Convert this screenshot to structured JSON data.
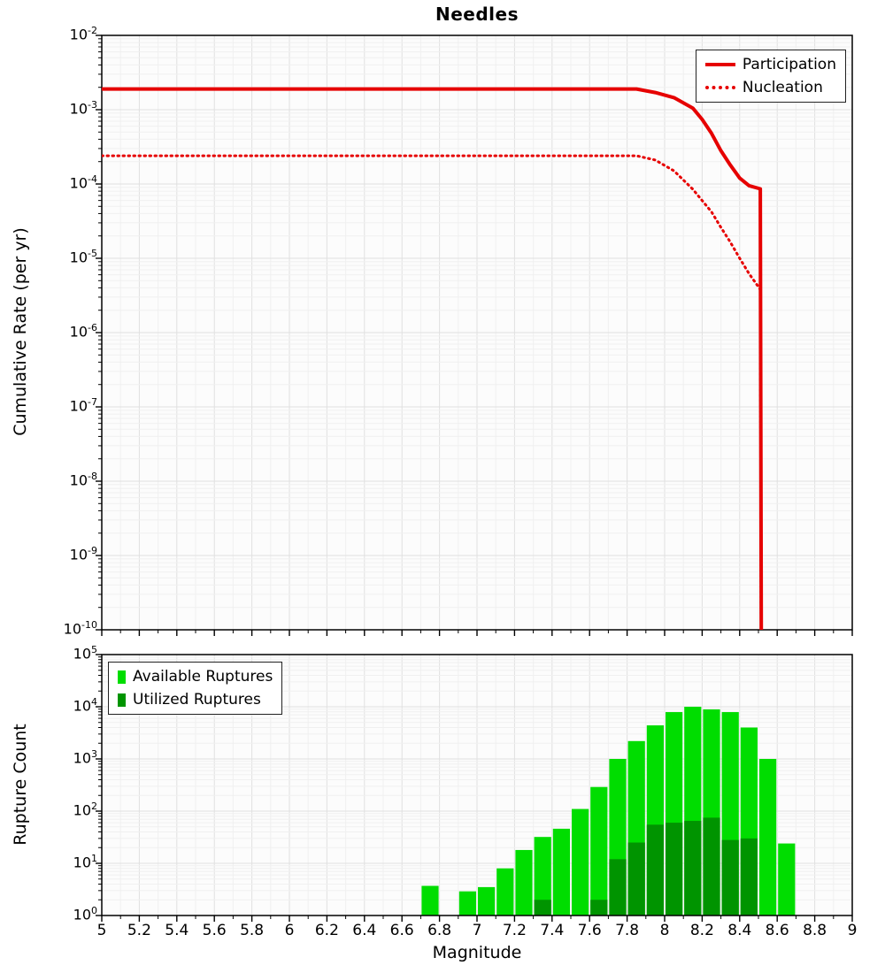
{
  "title": "Needles",
  "chart_data": [
    {
      "type": "line",
      "title": "Needles",
      "ylabel": "Cumulative Rate (per yr)",
      "xlabel": "",
      "x_range": [
        5,
        9
      ],
      "y_scale": "log",
      "y_exp_min": -10,
      "y_exp_max": -2,
      "grid": true,
      "legend_position": "top-right",
      "x_major_ticks": [
        5,
        5.2,
        5.4,
        5.6,
        5.8,
        6,
        6.2,
        6.4,
        6.6,
        6.8,
        7,
        7.2,
        7.4,
        7.6,
        7.8,
        8,
        8.2,
        8.4,
        8.6,
        8.8,
        9
      ],
      "points_format": "[magnitude, cumulative_rate_per_yr]",
      "series": [
        {
          "name": "Participation",
          "color": "#e60000",
          "line": "solid",
          "points": [
            [
              5,
              0.0019
            ],
            [
              7.85,
              0.0019
            ],
            [
              7.95,
              0.0017
            ],
            [
              8.05,
              0.00145
            ],
            [
              8.15,
              0.00105
            ],
            [
              8.2,
              0.00074
            ],
            [
              8.25,
              0.00048
            ],
            [
              8.3,
              0.00028
            ],
            [
              8.35,
              0.00018
            ],
            [
              8.4,
              0.00012
            ],
            [
              8.45,
              9.5e-05
            ],
            [
              8.51,
              8.6e-05
            ],
            [
              8.515,
              1e-10
            ]
          ]
        },
        {
          "name": "Nucleation",
          "color": "#e60000",
          "line": "dotted",
          "points": [
            [
              5,
              0.00024
            ],
            [
              7.85,
              0.00024
            ],
            [
              7.95,
              0.00021
            ],
            [
              8.05,
              0.00015
            ],
            [
              8.15,
              8.5e-05
            ],
            [
              8.25,
              4.2e-05
            ],
            [
              8.3,
              2.6e-05
            ],
            [
              8.35,
              1.65e-05
            ],
            [
              8.4,
              1e-05
            ],
            [
              8.45,
              6.2e-06
            ],
            [
              8.51,
              3.8e-06
            ],
            [
              8.515,
              1e-11
            ]
          ]
        }
      ]
    },
    {
      "type": "bar",
      "ylabel": "Rupture Count",
      "xlabel": "Magnitude",
      "x_range": [
        5,
        9
      ],
      "y_scale": "log",
      "y_exp_min": 0,
      "y_exp_max": 5,
      "bin_width": 0.1,
      "grid": true,
      "legend_position": "top-left",
      "series": [
        {
          "name": "Available Ruptures",
          "color": "#00dd00"
        },
        {
          "name": "Utilized Ruptures",
          "color": "#009400"
        }
      ],
      "bins_format": "[magnitude_bin_center, available_count, utilized_count]",
      "bins": [
        [
          6.75,
          3.7,
          0
        ],
        [
          6.95,
          2.9,
          0
        ],
        [
          7.05,
          3.5,
          0
        ],
        [
          7.15,
          8,
          0
        ],
        [
          7.25,
          18,
          0
        ],
        [
          7.35,
          32,
          2
        ],
        [
          7.45,
          46,
          0
        ],
        [
          7.55,
          110,
          0
        ],
        [
          7.65,
          290,
          2
        ],
        [
          7.75,
          1000,
          12
        ],
        [
          7.85,
          2200,
          25
        ],
        [
          7.95,
          4400,
          55
        ],
        [
          8.05,
          7900,
          60
        ],
        [
          8.15,
          10000,
          65
        ],
        [
          8.25,
          8900,
          75
        ],
        [
          8.35,
          7900,
          28
        ],
        [
          8.45,
          4000,
          30
        ],
        [
          8.55,
          1000,
          0
        ],
        [
          8.65,
          24,
          0
        ]
      ]
    }
  ]
}
